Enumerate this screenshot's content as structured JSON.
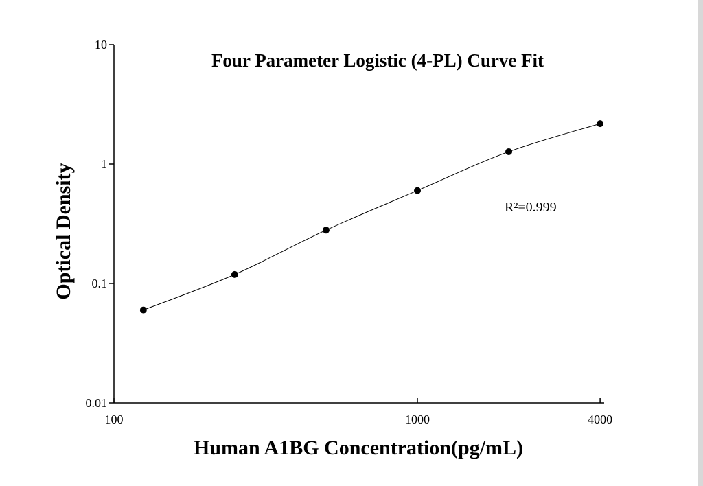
{
  "chart_data": {
    "type": "scatter",
    "title": "Four Parameter Logistic (4-PL) Curve Fit",
    "x_label": "Human A1BG Concentration(pg/mL)",
    "y_label": "Optical Density",
    "annotation": "R²=0.999",
    "x": [
      125,
      250,
      500,
      1000,
      2000,
      4000
    ],
    "series": [
      {
        "name": "OD",
        "color": "#000000",
        "values": [
          0.06,
          0.119,
          0.28,
          0.6,
          1.27,
          2.18
        ]
      }
    ],
    "xlim": [
      100,
      4000
    ],
    "ylim": [
      0.01,
      10
    ],
    "xticks": [
      100,
      1000,
      4000
    ],
    "yticks": [
      0.01,
      0.1,
      1,
      10
    ],
    "xscale": "log",
    "yscale": "log",
    "fit_curve": true
  }
}
